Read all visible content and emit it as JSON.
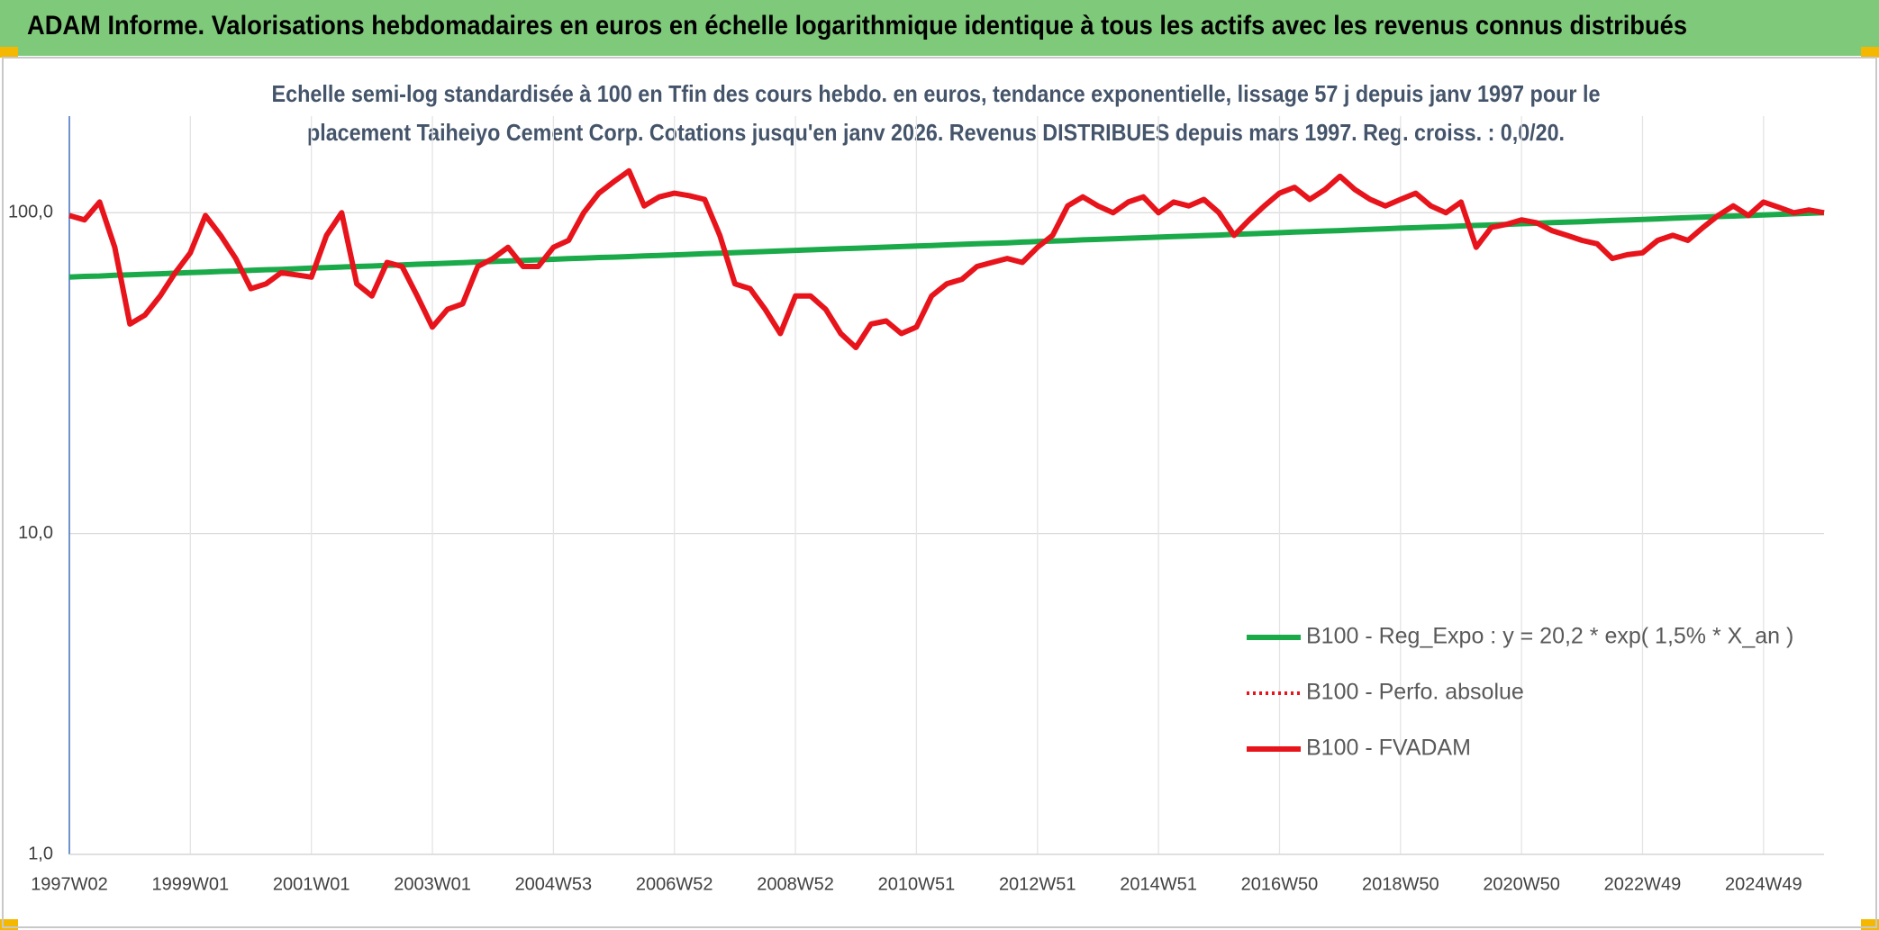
{
  "chart_data": {
    "type": "line",
    "title": "ADAM Informe. Valorisations hebdomadaires en euros en échelle logarithmique identique à tous les actifs avec les revenus connus distribués",
    "subtitle": [
      "Echelle semi-log standardisée à 100 en Tfin des cours hebdo. en euros, tendance exponentielle, lissage 57 j depuis janv 1997 pour le",
      "placement Taiheiyo Cement Corp. Cotations jusqu'en janv 2026. Revenus DISTRIBUES depuis mars 1997. Reg. croiss. : 0,0/20."
    ],
    "log_scale": true,
    "grid": true,
    "ylim": [
      1,
      200
    ],
    "yticks": [
      {
        "value": 1,
        "label": "1,0"
      },
      {
        "value": 10,
        "label": "10,0"
      },
      {
        "value": 100,
        "label": "100,0"
      }
    ],
    "categories": [
      "1997W02",
      null,
      null,
      null,
      null,
      null,
      null,
      null,
      "1999W01",
      null,
      null,
      null,
      null,
      null,
      null,
      null,
      "2001W01",
      null,
      null,
      null,
      null,
      null,
      null,
      null,
      "2003W01",
      null,
      null,
      null,
      null,
      null,
      null,
      null,
      "2004W53",
      null,
      null,
      null,
      null,
      null,
      null,
      null,
      "2006W52",
      null,
      null,
      null,
      null,
      null,
      null,
      null,
      "2008W52",
      null,
      null,
      null,
      null,
      null,
      null,
      null,
      "2010W51",
      null,
      null,
      null,
      null,
      null,
      null,
      null,
      "2012W51",
      null,
      null,
      null,
      null,
      null,
      null,
      null,
      "2014W51",
      null,
      null,
      null,
      null,
      null,
      null,
      null,
      "2016W50",
      null,
      null,
      null,
      null,
      null,
      null,
      null,
      "2018W50",
      null,
      null,
      null,
      null,
      null,
      null,
      null,
      "2020W50",
      null,
      null,
      null,
      null,
      null,
      null,
      null,
      "2022W49",
      null,
      null,
      null,
      null,
      null,
      null,
      null,
      "2024W49",
      null,
      null,
      null,
      null
    ],
    "series": [
      {
        "name": "B100 - Reg_Expo : y = 20,2 * exp( 1,5% *  X_an )",
        "color": "#1aaa4a",
        "style": "solid",
        "values": [
          63.0,
          63.3,
          63.5,
          63.8,
          64.0,
          64.3,
          64.5,
          64.8,
          65.1,
          65.3,
          65.6,
          65.8,
          66.1,
          66.4,
          66.6,
          66.9,
          67.2,
          67.4,
          67.7,
          68.0,
          68.2,
          68.5,
          68.8,
          69.1,
          69.3,
          69.6,
          69.9,
          70.2,
          70.5,
          70.7,
          71.0,
          71.3,
          71.6,
          71.9,
          72.2,
          72.5,
          72.7,
          73.0,
          73.3,
          73.6,
          73.9,
          74.2,
          74.5,
          74.8,
          75.1,
          75.4,
          75.7,
          76.0,
          76.3,
          76.6,
          76.9,
          77.2,
          77.5,
          77.8,
          78.1,
          78.4,
          78.7,
          79.0,
          79.4,
          79.7,
          80.0,
          80.3,
          80.6,
          81.0,
          81.3,
          81.6,
          81.9,
          82.3,
          82.6,
          82.9,
          83.3,
          83.6,
          83.9,
          84.3,
          84.6,
          84.9,
          85.2,
          85.6,
          85.9,
          86.3,
          86.6,
          87.0,
          87.3,
          87.7,
          88.0,
          88.4,
          88.7,
          89.1,
          89.5,
          89.8,
          90.2,
          90.5,
          90.9,
          91.3,
          91.6,
          92.0,
          92.4,
          92.7,
          93.1,
          93.4,
          93.8,
          94.2,
          94.6,
          94.9,
          95.3,
          95.7,
          96.1,
          96.5,
          96.9,
          97.3,
          97.6,
          98.0,
          98.4,
          98.8,
          99.2,
          99.6,
          100.0
        ]
      },
      {
        "name": "B100 - Perfo. absolue",
        "color": "#e8141c",
        "style": "dotted",
        "values": [
          98,
          95,
          108,
          78,
          45,
          48,
          55,
          65,
          75,
          98,
          85,
          72,
          58,
          60,
          65,
          64,
          63,
          85,
          100,
          60,
          55,
          70,
          68,
          55,
          44,
          50,
          52,
          68,
          72,
          78,
          68,
          68,
          78,
          82,
          100,
          115,
          125,
          135,
          105,
          112,
          115,
          113,
          110,
          85,
          60,
          58,
          50,
          42,
          55,
          55,
          50,
          42,
          38,
          45,
          46,
          42,
          44,
          55,
          60,
          62,
          68,
          70,
          72,
          70,
          78,
          85,
          105,
          112,
          105,
          100,
          108,
          112,
          100,
          108,
          105,
          110,
          100,
          85,
          95,
          105,
          115,
          120,
          110,
          118,
          130,
          118,
          110,
          105,
          110,
          115,
          105,
          100,
          108,
          78,
          90,
          92,
          95,
          93,
          88,
          85,
          82,
          80,
          72,
          74,
          75,
          82,
          85,
          82,
          90,
          98,
          105,
          98,
          108,
          104,
          100,
          102,
          100
        ]
      },
      {
        "name": "B100 - FVADAM",
        "color": "#e8141c",
        "style": "solid",
        "values": [
          98,
          95,
          108,
          78,
          45,
          48,
          55,
          65,
          75,
          98,
          85,
          72,
          58,
          60,
          65,
          64,
          63,
          85,
          100,
          60,
          55,
          70,
          68,
          55,
          44,
          50,
          52,
          68,
          72,
          78,
          68,
          68,
          78,
          82,
          100,
          115,
          125,
          135,
          105,
          112,
          115,
          113,
          110,
          85,
          60,
          58,
          50,
          42,
          55,
          55,
          50,
          42,
          38,
          45,
          46,
          42,
          44,
          55,
          60,
          62,
          68,
          70,
          72,
          70,
          78,
          85,
          105,
          112,
          105,
          100,
          108,
          112,
          100,
          108,
          105,
          110,
          100,
          85,
          95,
          105,
          115,
          120,
          110,
          118,
          130,
          118,
          110,
          105,
          110,
          115,
          105,
          100,
          108,
          78,
          90,
          92,
          95,
          93,
          88,
          85,
          82,
          80,
          72,
          74,
          75,
          82,
          85,
          82,
          90,
          98,
          105,
          98,
          108,
          104,
          100,
          102,
          100
        ]
      }
    ]
  }
}
